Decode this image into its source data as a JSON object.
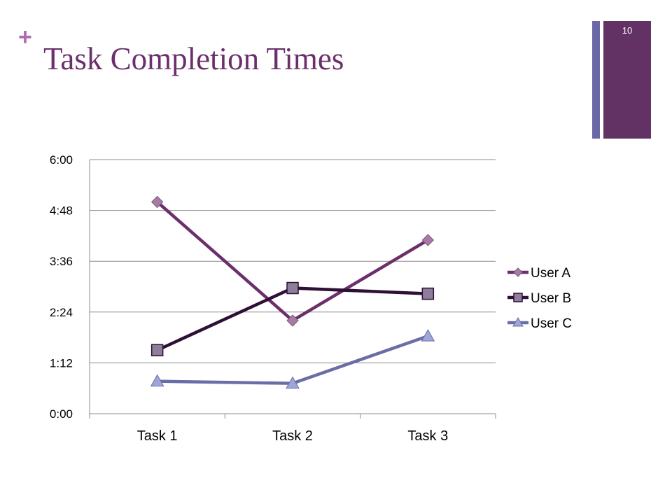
{
  "slide": {
    "plus_symbol": "+",
    "title": "Task Completion Times",
    "slide_number": "10"
  },
  "colors": {
    "title": "#6b2f6b",
    "plus": "#b06ab3",
    "accent_bar_light": "#6a68a6",
    "accent_bar_dark": "#633264"
  },
  "chart_data": {
    "type": "line",
    "title": "",
    "xlabel": "",
    "ylabel": "",
    "categories": [
      "Task 1",
      "Task 2",
      "Task 3"
    ],
    "y_unit": "minutes:seconds",
    "ylim": [
      "0:00",
      "6:00"
    ],
    "y_ticks": [
      "0:00",
      "1:12",
      "2:24",
      "3:36",
      "4:48",
      "6:00"
    ],
    "grid": true,
    "legend_position": "right",
    "series": [
      {
        "name": "User A",
        "values": [
          "5:00",
          "2:12",
          "4:06"
        ],
        "color": "#6b2f6b",
        "marker": "diamond",
        "marker_fill": "#a77ba6"
      },
      {
        "name": "User B",
        "values": [
          "1:30",
          "2:58",
          "2:50"
        ],
        "color": "#2e0f36",
        "marker": "square",
        "marker_fill": "#8d7f9a"
      },
      {
        "name": "User C",
        "values": [
          "0:46",
          "0:43",
          "1:50"
        ],
        "color": "#6a6ea6",
        "marker": "triangle",
        "marker_fill": "#9ea6d8"
      }
    ]
  }
}
